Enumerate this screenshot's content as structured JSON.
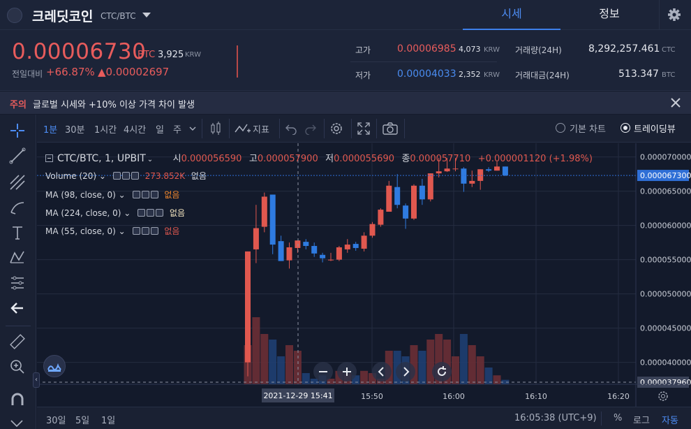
{
  "header": {
    "coin_name": "크레딧코인",
    "pair": "CTC/BTC",
    "tabs": [
      "시세",
      "정보"
    ]
  },
  "summary": {
    "price": "0.00006730",
    "price_unit": "BTC",
    "krw": "3,925",
    "krw_unit": "KRW",
    "prev_label": "전일대비",
    "change_rate": "+66.87%",
    "change_amount": "▲0.00002697",
    "high_label": "고가",
    "high_value": "0.00006985",
    "high_krw": "4,073",
    "low_label": "저가",
    "low_value": "0.00004033",
    "low_krw": "2,352",
    "krw_unit_small": "KRW",
    "vol_label": "거래량(24H)",
    "vol_value": "8,292,257.461",
    "vol_unit": "CTC",
    "amt_label": "거래대금(24H)",
    "amt_value": "513.347",
    "amt_unit": "BTC"
  },
  "notice": {
    "tag": "주의",
    "text": "글로벌 시세와 +10% 이상 가격 차이 발생"
  },
  "toolbar": {
    "intervals": [
      "1분",
      "30분",
      "1시간",
      "4시간",
      "일",
      "주"
    ],
    "indicator_label": "지표",
    "basic_chart": "기본 차트",
    "tradingview": "트레이딩뷰"
  },
  "legend": {
    "title": "CTC/BTC, 1, UPBIT",
    "o_label": "시",
    "o": "0.000056590",
    "h_label": "고",
    "h": "0.000057900",
    "l_label": "저",
    "l": "0.000055690",
    "c_label": "종",
    "c": "0.000057710",
    "chg": "+0.000001120 (+1.98%)",
    "volume": "Volume (20)",
    "volume_val": "273.852K",
    "none": "없음",
    "ma1": "MA (98, close, 0)",
    "ma2": "MA (224, close, 0)",
    "ma3": "MA (55, close, 0)"
  },
  "axis": {
    "y_ticks": [
      "0.000070000",
      "0.000065000",
      "0.000060000",
      "0.000055000",
      "0.000050000",
      "0.000045000",
      "0.000040000"
    ],
    "current_tag": "0.000067300",
    "low_tag": "0.000037960",
    "x_ticks": [
      "15:50",
      "16:00",
      "16:10",
      "16:20"
    ],
    "cursor_date": "2021-12-29",
    "cursor_time": "15:41"
  },
  "bottom": {
    "ranges": [
      "30일",
      "5일",
      "1일"
    ],
    "clock": "16:05:38 (UTC+9)",
    "pct": "%",
    "log": "로그",
    "auto": "자동"
  },
  "colors": {
    "up": "#e0584f",
    "down": "#2f7be0",
    "accent": "#3d7fea"
  },
  "chart_data": {
    "type": "candlestick",
    "ylim": [
      3.68e-05,
      7.2e-05
    ],
    "candles": [
      {
        "o": 4e-05,
        "h": 5.62e-05,
        "l": 3.796e-05,
        "c": 5.62e-05
      },
      {
        "o": 5.65e-05,
        "h": 6.3e-05,
        "l": 5.45e-05,
        "c": 5.96e-05
      },
      {
        "o": 5.98e-05,
        "h": 6.48e-05,
        "l": 5.9e-05,
        "c": 6.42e-05
      },
      {
        "o": 6.45e-05,
        "h": 6.45e-05,
        "l": 5.58e-05,
        "c": 5.72e-05
      },
      {
        "o": 5.77e-05,
        "h": 5.85e-05,
        "l": 5.48e-05,
        "c": 5.48e-05
      },
      {
        "o": 5.49e-05,
        "h": 5.75e-05,
        "l": 5.37e-05,
        "c": 5.68e-05
      },
      {
        "o": 5.67e-05,
        "h": 5.78e-05,
        "l": 5.6e-05,
        "c": 5.78e-05
      },
      {
        "o": 5.76e-05,
        "h": 5.8e-05,
        "l": 5.65e-05,
        "c": 5.7e-05
      },
      {
        "o": 5.7e-05,
        "h": 5.75e-05,
        "l": 5.54e-05,
        "c": 5.59e-05
      },
      {
        "o": 5.57e-05,
        "h": 5.6e-05,
        "l": 5.46e-05,
        "c": 5.52e-05
      },
      {
        "o": 5.5e-05,
        "h": 5.6e-05,
        "l": 5.48e-05,
        "c": 5.5e-05
      },
      {
        "o": 5.5e-05,
        "h": 5.7e-05,
        "l": 5.48e-05,
        "c": 5.68e-05
      },
      {
        "o": 5.65e-05,
        "h": 5.8e-05,
        "l": 5.6e-05,
        "c": 5.72e-05
      },
      {
        "o": 5.73e-05,
        "h": 5.76e-05,
        "l": 5.63e-05,
        "c": 5.67e-05
      },
      {
        "o": 5.66e-05,
        "h": 5.9e-05,
        "l": 5.62e-05,
        "c": 5.85e-05
      },
      {
        "o": 5.85e-05,
        "h": 6.05e-05,
        "l": 5.82e-05,
        "c": 6.02e-05
      },
      {
        "o": 6.01e-05,
        "h": 6.25e-05,
        "l": 5.98e-05,
        "c": 6.23e-05
      },
      {
        "o": 6.2e-05,
        "h": 6.65e-05,
        "l": 6.2e-05,
        "c": 6.58e-05
      },
      {
        "o": 6.56e-05,
        "h": 6.75e-05,
        "l": 6.25e-05,
        "c": 6.3e-05
      },
      {
        "o": 6.29e-05,
        "h": 6.32e-05,
        "l": 5.95e-05,
        "c": 6.1e-05
      },
      {
        "o": 6.1e-05,
        "h": 6.6e-05,
        "l": 6.08e-05,
        "c": 6.58e-05
      },
      {
        "o": 6.58e-05,
        "h": 6.68e-05,
        "l": 6.3e-05,
        "c": 6.38e-05
      },
      {
        "o": 6.38e-05,
        "h": 6.76e-05,
        "l": 6.35e-05,
        "c": 6.76e-05
      },
      {
        "o": 6.76e-05,
        "h": 6.985e-05,
        "l": 6.7e-05,
        "c": 6.79e-05
      },
      {
        "o": 6.79e-05,
        "h": 6.985e-05,
        "l": 6.78e-05,
        "c": 6.83e-05
      },
      {
        "o": 6.83e-05,
        "h": 6.985e-05,
        "l": 6.79e-05,
        "c": 6.83e-05
      },
      {
        "o": 6.83e-05,
        "h": 6.85e-05,
        "l": 6.49e-05,
        "c": 6.61e-05
      },
      {
        "o": 6.61e-05,
        "h": 6.8e-05,
        "l": 6.56e-05,
        "c": 6.65e-05
      },
      {
        "o": 6.65e-05,
        "h": 6.82e-05,
        "l": 6.52e-05,
        "c": 6.82e-05
      },
      {
        "o": 6.82e-05,
        "h": 6.85e-05,
        "l": 6.78e-05,
        "c": 6.8e-05
      },
      {
        "o": 6.8e-05,
        "h": 6.93e-05,
        "l": 6.8e-05,
        "c": 6.86e-05
      },
      {
        "o": 6.86e-05,
        "h": 6.86e-05,
        "l": 6.72e-05,
        "c": 6.73e-05
      }
    ],
    "volumes": [
      0.35,
      0.6,
      0.45,
      0.4,
      0.25,
      0.35,
      0.3,
      0.1,
      0.05,
      0.08,
      0.05,
      0.12,
      0.1,
      0.08,
      0.12,
      0.1,
      0.05,
      0.3,
      0.3,
      0.25,
      0.35,
      0.3,
      0.4,
      0.45,
      0.4,
      0.25,
      0.45,
      0.35,
      0.25,
      0.15,
      0.08,
      0.04
    ]
  }
}
